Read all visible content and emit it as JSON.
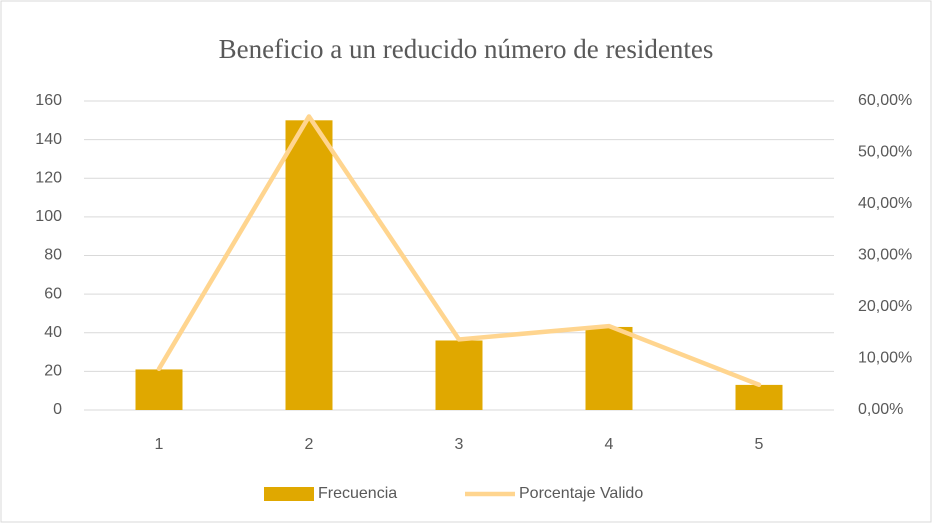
{
  "chart_data": {
    "type": "bar",
    "title": "Beneficio a un reducido número de residentes",
    "categories": [
      "1",
      "2",
      "3",
      "4",
      "5"
    ],
    "series": [
      {
        "name": "Frecuencia",
        "type": "bar",
        "color": "#e0a800",
        "values": [
          21,
          150,
          36,
          43,
          13
        ]
      },
      {
        "name": "Porcentaje Valido",
        "type": "line",
        "axis": "y2",
        "color": "#ffd58f",
        "values": [
          8.0,
          57.0,
          13.7,
          16.3,
          4.9
        ]
      }
    ],
    "ylim": [
      0,
      160
    ],
    "yticks": [
      0,
      20,
      40,
      60,
      80,
      100,
      120,
      140,
      160
    ],
    "y2lim": [
      0,
      60
    ],
    "y2ticks": [
      {
        "value": 0,
        "label": "0,00%"
      },
      {
        "value": 10,
        "label": "10,00%"
      },
      {
        "value": 20,
        "label": "20,00%"
      },
      {
        "value": 30,
        "label": "30,00%"
      },
      {
        "value": 40,
        "label": "40,00%"
      },
      {
        "value": 50,
        "label": "50,00%"
      },
      {
        "value": 60,
        "label": "60,00%"
      }
    ],
    "grid": true,
    "legend": "bottom"
  }
}
